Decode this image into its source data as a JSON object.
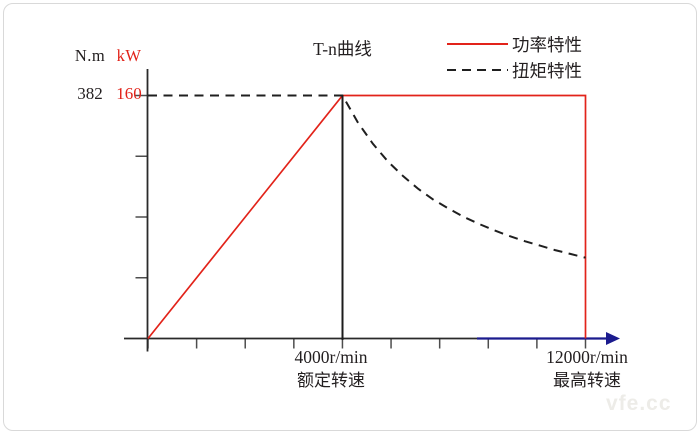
{
  "chart_data": {
    "type": "line",
    "title": "T-n曲线",
    "x_unit": "r/min",
    "x_range_rpm": [
      0,
      12000
    ],
    "rated_speed_rpm": 4000,
    "max_speed_rpm": 12000,
    "x_tick_labels": [
      {
        "value": "4000r/min",
        "caption": "额定转速"
      },
      {
        "value": "12000r/min",
        "caption": "最高转速"
      }
    ],
    "y_left": {
      "unit": "N.m",
      "max_label": "382",
      "max": 382,
      "color": "#231f20"
    },
    "y_right": {
      "unit": "kW",
      "max_label": "160",
      "max": 160,
      "color": "#e2231a"
    },
    "legend_position": "top-right",
    "grid": false,
    "series": [
      {
        "name": "功率特性",
        "unit": "kW",
        "line_style": "solid",
        "color": "#e2231a",
        "y_max": 160,
        "points_rpm_value": [
          [
            0,
            0
          ],
          [
            4000,
            160
          ],
          [
            12000,
            160
          ],
          [
            12000,
            0
          ]
        ]
      },
      {
        "name": "扭矩特性",
        "unit": "N.m",
        "line_style": "dashed",
        "color": "#1f1f1f",
        "y_max": 382,
        "points_rpm_value": [
          [
            0,
            382
          ],
          [
            4000,
            382
          ],
          [
            4500,
            340
          ],
          [
            5000,
            306
          ],
          [
            5500,
            278
          ],
          [
            6000,
            255
          ],
          [
            6500,
            235
          ],
          [
            7000,
            218
          ],
          [
            7500,
            204
          ],
          [
            8000,
            191
          ],
          [
            8500,
            180
          ],
          [
            9000,
            170
          ],
          [
            9500,
            161
          ],
          [
            10000,
            153
          ],
          [
            10500,
            146
          ],
          [
            11000,
            139
          ],
          [
            11500,
            133
          ],
          [
            12000,
            127
          ]
        ]
      }
    ],
    "annotations": [
      {
        "type": "vline_at_rated_speed",
        "rpm": 4000,
        "color": "#1c1c1c"
      },
      {
        "type": "x_axis_arrow",
        "color": "#1b1b8e"
      }
    ],
    "watermark": "vfe.cc"
  }
}
